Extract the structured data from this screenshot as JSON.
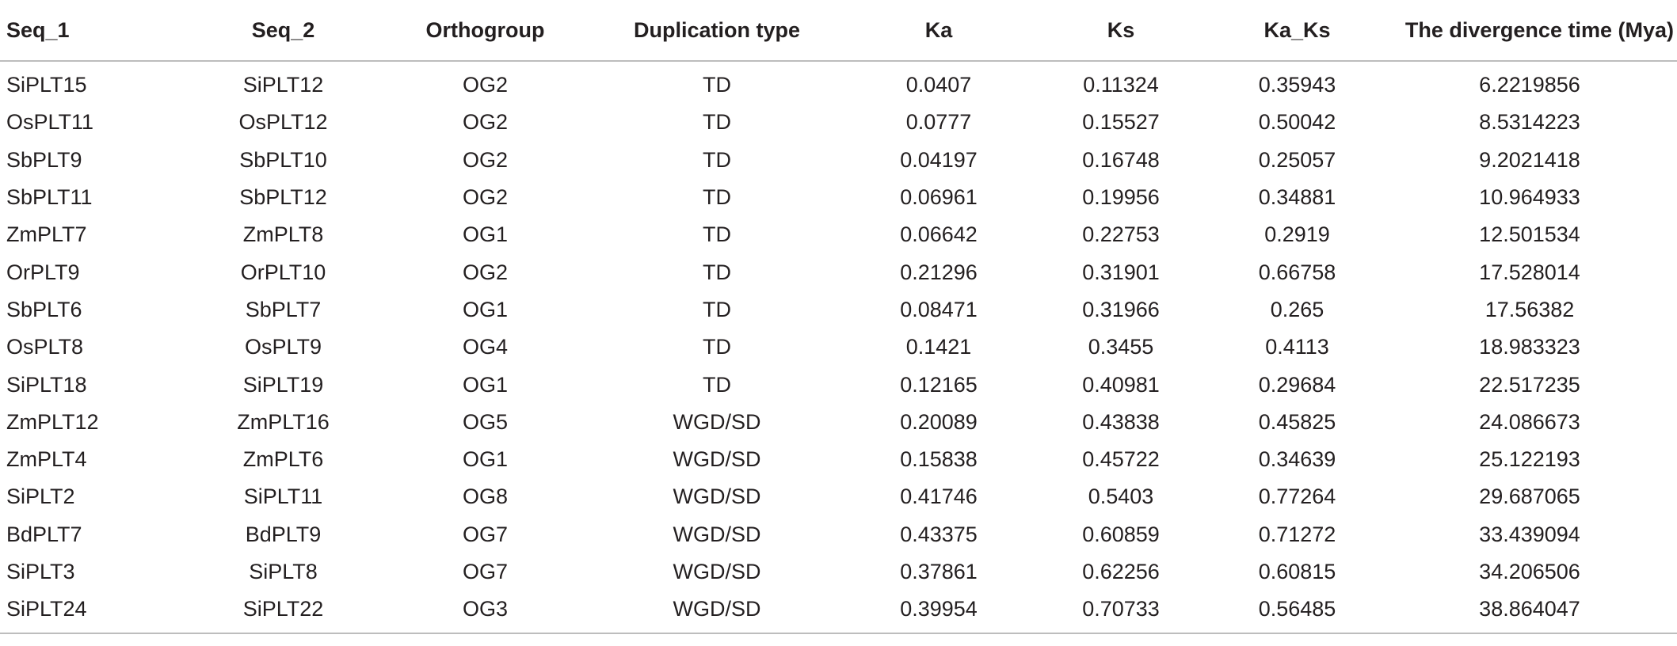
{
  "table": {
    "headers": [
      "Seq_1",
      "Seq_2",
      "Orthogroup",
      "Duplication type",
      "Ka",
      "Ks",
      "Ka_Ks",
      "The divergence time (Mya)"
    ],
    "rows": [
      [
        "SiPLT15",
        "SiPLT12",
        "OG2",
        "TD",
        "0.0407",
        "0.11324",
        "0.35943",
        "6.2219856"
      ],
      [
        "OsPLT11",
        "OsPLT12",
        "OG2",
        "TD",
        "0.0777",
        "0.15527",
        "0.50042",
        "8.5314223"
      ],
      [
        "SbPLT9",
        "SbPLT10",
        "OG2",
        "TD",
        "0.04197",
        "0.16748",
        "0.25057",
        "9.2021418"
      ],
      [
        "SbPLT11",
        "SbPLT12",
        "OG2",
        "TD",
        "0.06961",
        "0.19956",
        "0.34881",
        "10.964933"
      ],
      [
        "ZmPLT7",
        "ZmPLT8",
        "OG1",
        "TD",
        "0.06642",
        "0.22753",
        "0.2919",
        "12.501534"
      ],
      [
        "OrPLT9",
        "OrPLT10",
        "OG2",
        "TD",
        "0.21296",
        "0.31901",
        "0.66758",
        "17.528014"
      ],
      [
        "SbPLT6",
        "SbPLT7",
        "OG1",
        "TD",
        "0.08471",
        "0.31966",
        "0.265",
        "17.56382"
      ],
      [
        "OsPLT8",
        "OsPLT9",
        "OG4",
        "TD",
        "0.1421",
        "0.3455",
        "0.4113",
        "18.983323"
      ],
      [
        "SiPLT18",
        "SiPLT19",
        "OG1",
        "TD",
        "0.12165",
        "0.40981",
        "0.29684",
        "22.517235"
      ],
      [
        "ZmPLT12",
        "ZmPLT16",
        "OG5",
        "WGD/SD",
        "0.20089",
        "0.43838",
        "0.45825",
        "24.086673"
      ],
      [
        "ZmPLT4",
        "ZmPLT6",
        "OG1",
        "WGD/SD",
        "0.15838",
        "0.45722",
        "0.34639",
        "25.122193"
      ],
      [
        "SiPLT2",
        "SiPLT11",
        "OG8",
        "WGD/SD",
        "0.41746",
        "0.5403",
        "0.77264",
        "29.687065"
      ],
      [
        "BdPLT7",
        "BdPLT9",
        "OG7",
        "WGD/SD",
        "0.43375",
        "0.60859",
        "0.71272",
        "33.439094"
      ],
      [
        "SiPLT3",
        "SiPLT8",
        "OG7",
        "WGD/SD",
        "0.37861",
        "0.62256",
        "0.60815",
        "34.206506"
      ],
      [
        "SiPLT24",
        "SiPLT22",
        "OG3",
        "WGD/SD",
        "0.39954",
        "0.70733",
        "0.56485",
        "38.864047"
      ]
    ]
  }
}
